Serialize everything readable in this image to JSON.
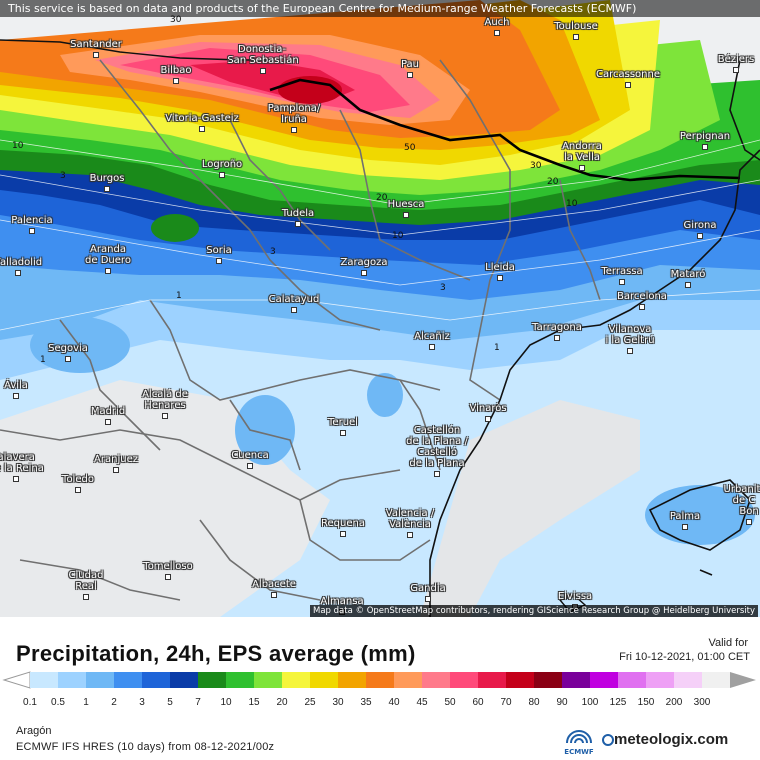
{
  "banner": "This service is based on data and products of the European Centre for Medium-range Weather Forecasts (ECMWF)",
  "attribution": "Map data © OpenStreetMap contributors, rendering GIScience Research Group @ Heidelberg University",
  "title": "Precipitation, 24h, EPS average (mm)",
  "valid_label": "Valid for",
  "valid_time": "Fri 10-12-2021, 01:00 CET",
  "region": "Aragón",
  "model": "ECMWF IFS HRES (10 days) from  08-12-2021/00z",
  "brand": "meteologix.com",
  "ecmwf_label": "ECMWF",
  "legend": {
    "ticks": [
      "0.1",
      "0.5",
      "1",
      "2",
      "3",
      "5",
      "7",
      "10",
      "15",
      "20",
      "25",
      "30",
      "35",
      "40",
      "45",
      "50",
      "60",
      "70",
      "80",
      "90",
      "100",
      "125",
      "150",
      "200",
      "300"
    ],
    "colors": [
      "#c8e8ff",
      "#9dd2ff",
      "#6fb8f5",
      "#3f8ff0",
      "#1e64d8",
      "#0a3ca8",
      "#1a8a1a",
      "#2fc02f",
      "#7ee43a",
      "#f5f53c",
      "#f0d800",
      "#f2a400",
      "#f57a1a",
      "#ff9a5a",
      "#ff7a8a",
      "#ff4a7a",
      "#e81a4a",
      "#c4001a",
      "#8a0014",
      "#7a009a",
      "#c000e0",
      "#e070f0",
      "#eea0f5",
      "#f5d0f8",
      "#f0f0f0"
    ]
  },
  "contour_labels": [
    "50",
    "30",
    "30",
    "20",
    "20",
    "10",
    "10",
    "10",
    "3",
    "3",
    "3",
    "1",
    "1",
    "1"
  ],
  "cities": [
    {
      "name": "Santander"
    },
    {
      "name": "Bilbao"
    },
    {
      "name": "Donostia-"
    },
    {
      "name": "San Sebastián"
    },
    {
      "name": "Auch"
    },
    {
      "name": "Toulouse"
    },
    {
      "name": "Béziers"
    },
    {
      "name": "Pau"
    },
    {
      "name": "Carcassonne"
    },
    {
      "name": "Vitoria-Gasteiz"
    },
    {
      "name": "Pamplona/"
    },
    {
      "name": "Iruña"
    },
    {
      "name": "Perpignan"
    },
    {
      "name": "Andorra"
    },
    {
      "name": "la Vella"
    },
    {
      "name": "Burgos"
    },
    {
      "name": "Logroño"
    },
    {
      "name": "Huesca"
    },
    {
      "name": "Palencia"
    },
    {
      "name": "Tudela"
    },
    {
      "name": "Girona"
    },
    {
      "name": "Aranda"
    },
    {
      "name": "de Duero"
    },
    {
      "name": "Soria"
    },
    {
      "name": "Valladolid"
    },
    {
      "name": "Zaragoza"
    },
    {
      "name": "Lleida"
    },
    {
      "name": "Terrassa"
    },
    {
      "name": "Mataró"
    },
    {
      "name": "Barcelona"
    },
    {
      "name": "Calatayud"
    },
    {
      "name": "Tarragona"
    },
    {
      "name": "Vilanova"
    },
    {
      "name": "i la Geltrú"
    },
    {
      "name": "Segovia"
    },
    {
      "name": "Alcañiz"
    },
    {
      "name": "Ávila"
    },
    {
      "name": "Alcalá de"
    },
    {
      "name": "Henares"
    },
    {
      "name": "Vinaròs"
    },
    {
      "name": "Madrid"
    },
    {
      "name": "Teruel"
    },
    {
      "name": "Castellón"
    },
    {
      "name": "de la Plana /"
    },
    {
      "name": "Castelló"
    },
    {
      "name": "de la Plana"
    },
    {
      "name": "Talavera"
    },
    {
      "name": "de la Reina"
    },
    {
      "name": "Aranjuez"
    },
    {
      "name": "Cuenca"
    },
    {
      "name": "Toledo"
    },
    {
      "name": "Urbanit"
    },
    {
      "name": "de C"
    },
    {
      "name": "Bon"
    },
    {
      "name": "Palma"
    },
    {
      "name": "Requena"
    },
    {
      "name": "Valencia /"
    },
    {
      "name": "València"
    },
    {
      "name": "Ciudad"
    },
    {
      "name": "Real"
    },
    {
      "name": "Tomelloso"
    },
    {
      "name": "Albacete"
    },
    {
      "name": "Gandia"
    },
    {
      "name": "Almansa"
    },
    {
      "name": "Eivissa"
    }
  ]
}
